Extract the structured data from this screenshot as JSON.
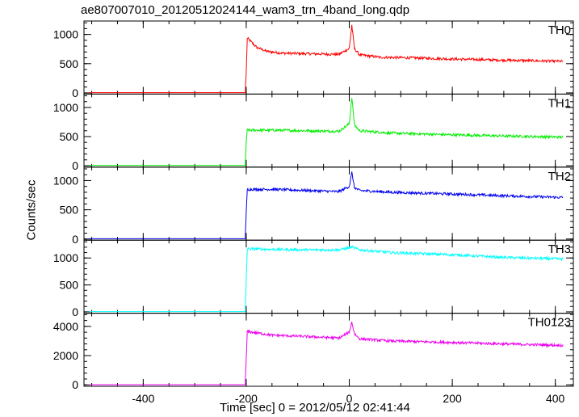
{
  "chart_data": {
    "type": "line",
    "title": "ae807007010_20120512024144_wam3_trn_4band_long.qdp",
    "xlabel": "Time [sec] 0 = 2012/05/12 02:41:44",
    "ylabel": "Counts/sec",
    "xlim": [
      -515,
      435
    ],
    "x_ticks": [
      -400,
      -200,
      0,
      200,
      400
    ],
    "shared_x": true,
    "grid": false,
    "panels": [
      {
        "name": "TH0",
        "color": "#ff0000",
        "ylim": [
          -20,
          1230
        ],
        "y_ticks": [
          0,
          500,
          1000
        ],
        "series_points": [
          [
            -505,
            5
          ],
          [
            -202,
            5
          ],
          [
            -200,
            350
          ],
          [
            -198,
            940
          ],
          [
            -190,
            870
          ],
          [
            -180,
            780
          ],
          [
            -160,
            710
          ],
          [
            -130,
            680
          ],
          [
            -80,
            670
          ],
          [
            -20,
            660
          ],
          [
            0,
            760
          ],
          [
            5,
            1160
          ],
          [
            10,
            760
          ],
          [
            20,
            650
          ],
          [
            60,
            610
          ],
          [
            120,
            600
          ],
          [
            200,
            580
          ],
          [
            300,
            560
          ],
          [
            415,
            540
          ]
        ]
      },
      {
        "name": "TH1",
        "color": "#00ee00",
        "ylim": [
          -25,
          1230
        ],
        "y_ticks": [
          0,
          500,
          1000
        ],
        "series_points": [
          [
            -505,
            5
          ],
          [
            -202,
            5
          ],
          [
            -200,
            400
          ],
          [
            -198,
            610
          ],
          [
            -150,
            610
          ],
          [
            -80,
            600
          ],
          [
            -20,
            590
          ],
          [
            0,
            720
          ],
          [
            5,
            1180
          ],
          [
            10,
            700
          ],
          [
            20,
            600
          ],
          [
            80,
            560
          ],
          [
            200,
            530
          ],
          [
            300,
            510
          ],
          [
            415,
            490
          ]
        ]
      },
      {
        "name": "TH2",
        "color": "#0000ee",
        "ylim": [
          -20,
          1230
        ],
        "y_ticks": [
          0,
          500,
          1000
        ],
        "series_points": [
          [
            -505,
            5
          ],
          [
            -202,
            5
          ],
          [
            -200,
            450
          ],
          [
            -198,
            850
          ],
          [
            -150,
            850
          ],
          [
            -80,
            830
          ],
          [
            -20,
            810
          ],
          [
            0,
            900
          ],
          [
            5,
            1140
          ],
          [
            10,
            880
          ],
          [
            20,
            830
          ],
          [
            80,
            800
          ],
          [
            200,
            770
          ],
          [
            300,
            740
          ],
          [
            415,
            710
          ]
        ]
      },
      {
        "name": "TH3",
        "color": "#00ffff",
        "ylim": [
          -25,
          1330
        ],
        "y_ticks": [
          0,
          500,
          1000
        ],
        "series_points": [
          [
            -505,
            5
          ],
          [
            -202,
            5
          ],
          [
            -200,
            600
          ],
          [
            -198,
            1170
          ],
          [
            -150,
            1160
          ],
          [
            -80,
            1150
          ],
          [
            -20,
            1150
          ],
          [
            5,
            1200
          ],
          [
            20,
            1150
          ],
          [
            80,
            1100
          ],
          [
            200,
            1060
          ],
          [
            300,
            1010
          ],
          [
            415,
            980
          ]
        ]
      },
      {
        "name": "TH0123",
        "color": "#ee00ee",
        "ylim": [
          -100,
          4900
        ],
        "y_ticks": [
          0,
          2000,
          4000
        ],
        "series_points": [
          [
            -505,
            10
          ],
          [
            -202,
            10
          ],
          [
            -200,
            1800
          ],
          [
            -198,
            3650
          ],
          [
            -150,
            3400
          ],
          [
            -80,
            3300
          ],
          [
            -20,
            3200
          ],
          [
            0,
            3600
          ],
          [
            5,
            4300
          ],
          [
            10,
            3500
          ],
          [
            20,
            3150
          ],
          [
            80,
            3000
          ],
          [
            200,
            2900
          ],
          [
            300,
            2800
          ],
          [
            415,
            2700
          ]
        ]
      }
    ]
  }
}
